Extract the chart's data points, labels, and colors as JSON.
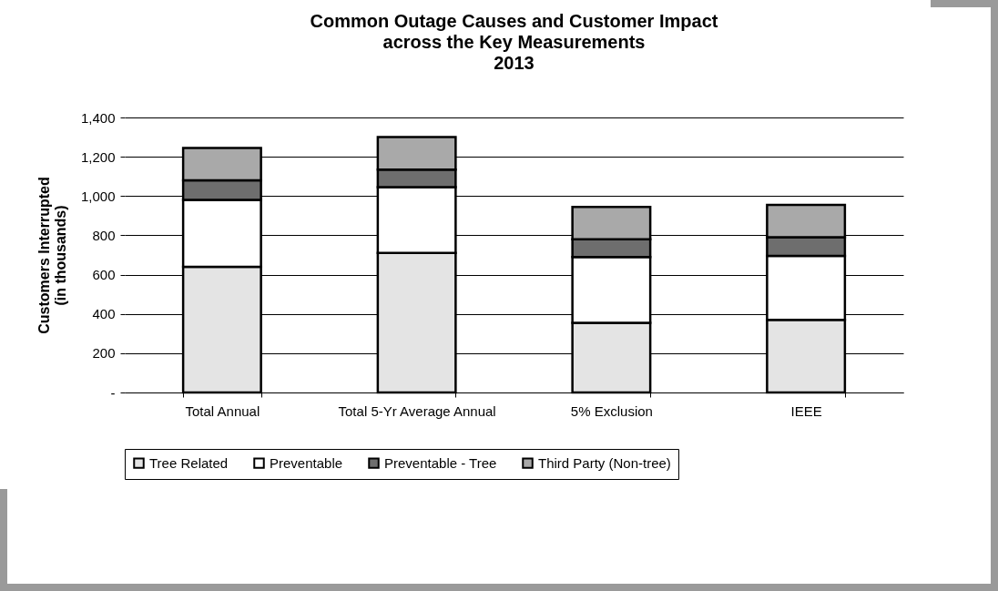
{
  "chart_data": {
    "type": "bar",
    "title": "Common Outage Causes and Customer Impact\nacross the Key Measurements\n2013",
    "ylabel": "Customers Interrupted\n(in thousands)",
    "categories": [
      "Total Annual",
      "Total 5-Yr Average Annual",
      "5% Exclusion",
      "IEEE"
    ],
    "stacked": true,
    "series": [
      {
        "name": "Tree Related",
        "color": "#e4e4e4",
        "values": [
          640,
          710,
          355,
          370
        ]
      },
      {
        "name": "Preventable",
        "color": "#ffffff",
        "values": [
          340,
          335,
          335,
          325
        ]
      },
      {
        "name": "Preventable - Tree",
        "color": "#6e6e6e",
        "values": [
          100,
          90,
          90,
          95
        ]
      },
      {
        "name": "Third Party (Non-tree)",
        "color": "#a9a9a9",
        "values": [
          165,
          165,
          165,
          165
        ]
      }
    ],
    "ylim": [
      0,
      1400
    ],
    "yticks": [
      {
        "value": 0,
        "label": "-"
      },
      200,
      400,
      600,
      800,
      {
        "value": 1000,
        "label": "1,000"
      },
      {
        "value": 1200,
        "label": "1,200"
      },
      {
        "value": 1400,
        "label": "1,400"
      }
    ],
    "grid": "y",
    "legend": "bottom"
  }
}
